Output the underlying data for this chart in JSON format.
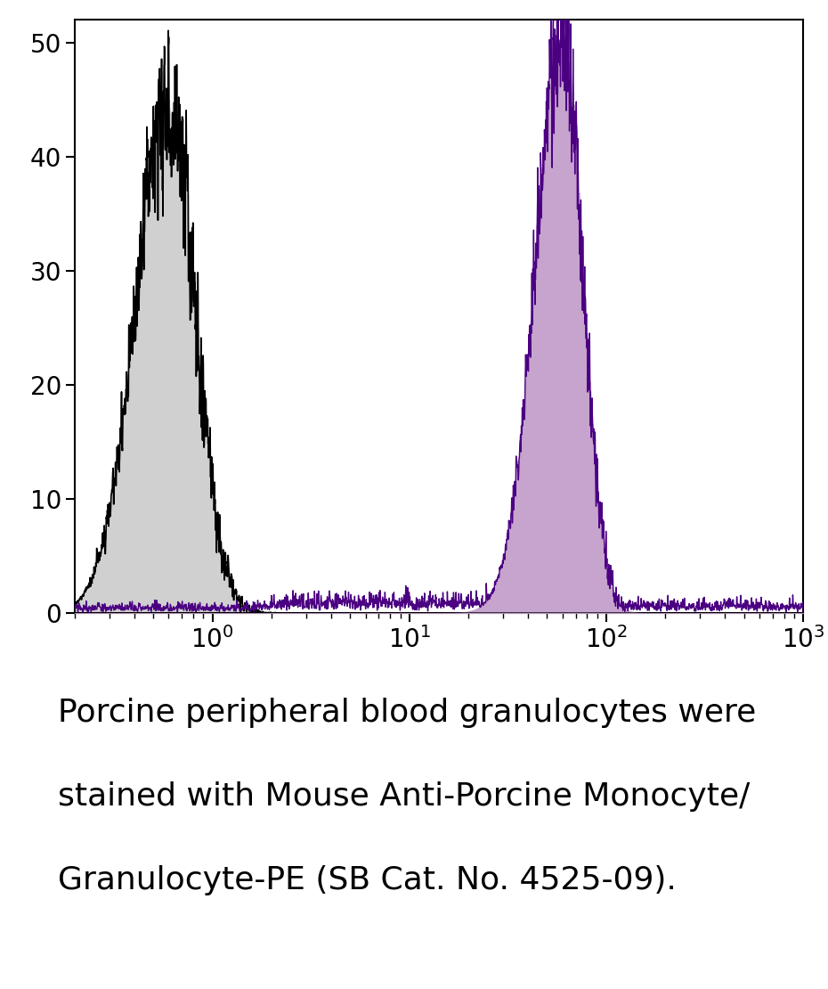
{
  "background_color": "#ffffff",
  "plot_bg_color": "#ffffff",
  "isotype_color": "#000000",
  "isotype_fill": "#d0d0d0",
  "stained_color": "#4b0082",
  "stained_fill": "#c09ac8",
  "isotype_peak_log": -0.22,
  "isotype_peak_y": 45,
  "isotype_sigma": 0.13,
  "stained_peak_log": 1.78,
  "stained_peak_y": 50,
  "stained_sigma": 0.1,
  "xlim": [
    -0.7,
    3.0
  ],
  "ylim": [
    0,
    52
  ],
  "yticks": [
    0,
    10,
    20,
    30,
    40,
    50
  ],
  "xtick_positions": [
    0,
    1,
    2,
    3
  ],
  "tick_fontsize": 20,
  "caption_fontsize": 26,
  "fig_width": 9.3,
  "fig_height": 11.1,
  "caption_line1": "Porcine peripheral blood granulocytes were",
  "caption_line2": "stained with Mouse Anti-Porcine Monocyte/",
  "caption_line3": "Granulocyte-PE (SB Cat. No. 4525-09)."
}
